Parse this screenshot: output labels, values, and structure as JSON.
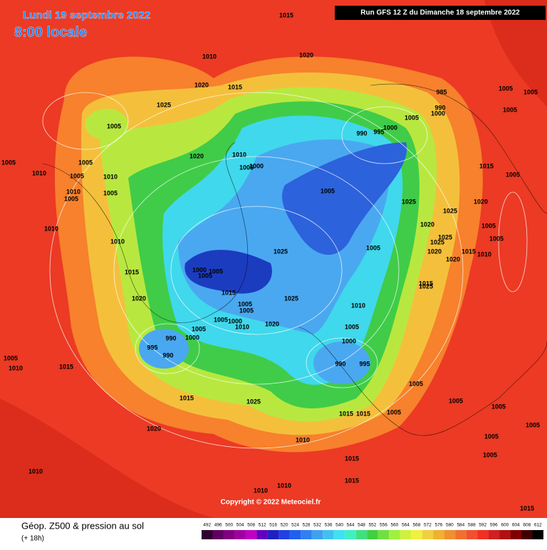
{
  "header": {
    "date": "Lundi 19 septembre 2022",
    "time": "8:00 locale",
    "run": "Run GFS 12 Z du Dimanche 18 septembre 2022"
  },
  "copyright": "Copyright © 2022 Meteociel.fr",
  "legend": {
    "title": "Géop. Z500 & pression au sol",
    "lead": "(+ 18h)",
    "values": [
      492,
      496,
      500,
      504,
      508,
      512,
      516,
      520,
      524,
      528,
      532,
      536,
      540,
      544,
      548,
      552,
      556,
      560,
      564,
      568,
      572,
      576,
      580,
      584,
      588,
      592,
      596,
      600,
      604,
      608,
      612
    ],
    "colors": [
      "#300030",
      "#600060",
      "#800080",
      "#a000a0",
      "#c000c0",
      "#6000c0",
      "#2020c0",
      "#2040e0",
      "#2060f0",
      "#3080f0",
      "#40a0f0",
      "#40c0f0",
      "#40e0f0",
      "#40f0c0",
      "#40e080",
      "#40d040",
      "#70e040",
      "#a0f040",
      "#d0f040",
      "#f0f040",
      "#f0d040",
      "#f0b030",
      "#f09030",
      "#f07030",
      "#f05030",
      "#f03020",
      "#d02020",
      "#b01010",
      "#800000",
      "#400000",
      "#000000"
    ]
  },
  "isobar_labels": [
    1015,
    1020,
    1010,
    1020,
    1015,
    1025,
    1005,
    1005,
    1010,
    1005,
    1005,
    1010,
    1010,
    1005,
    1005,
    1010,
    1010,
    1015,
    1020,
    1020,
    1010,
    1005,
    1000,
    1005,
    985,
    990,
    1000,
    1005,
    1000,
    990,
    995,
    1005,
    1005,
    1005,
    1015,
    1005,
    1025,
    1025,
    1020,
    1020,
    1025,
    1025,
    1005,
    1005,
    1020,
    1015,
    1010,
    1020,
    1025,
    1005,
    1015,
    1025,
    1000,
    1005,
    1005,
    1015,
    1025,
    1010,
    1005,
    1005,
    1005,
    1000,
    1010,
    1020,
    1005,
    1000,
    990,
    995,
    990,
    1005,
    1000,
    990,
    995,
    1015,
    1005,
    1010,
    1005,
    1005,
    1015,
    1025,
    1015,
    1015,
    1005,
    1005,
    1005,
    1020,
    1010,
    1005,
    1005,
    1015,
    1010,
    1015,
    1010,
    1010,
    1015
  ]
}
